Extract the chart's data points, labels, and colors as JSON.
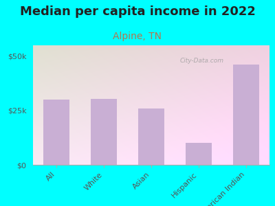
{
  "title": "Median per capita income in 2022",
  "subtitle": "Alpine, TN",
  "categories": [
    "All",
    "White",
    "Asian",
    "Hispanic",
    "American Indian"
  ],
  "values": [
    30000,
    30500,
    26000,
    10000,
    46000
  ],
  "bar_color": "#c9afd4",
  "background_color": "#00ffff",
  "title_fontsize": 13,
  "subtitle_fontsize": 10,
  "subtitle_color": "#b07850",
  "ytick_labels": [
    "$0",
    "$25k",
    "$50k"
  ],
  "ytick_values": [
    0,
    25000,
    50000
  ],
  "ylim": [
    0,
    55000
  ],
  "watermark": "City-Data.com",
  "tick_label_color": "#555555",
  "title_color": "#222222"
}
